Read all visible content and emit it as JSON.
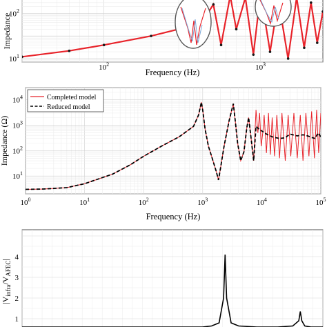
{
  "chart_data": [
    {
      "type": "line",
      "xlabel": "Frequency (Hz)",
      "ylabel": "Impedance",
      "xscale": "log",
      "yscale": "log",
      "xlim": [
        30,
        2500
      ],
      "ylim": [
        0.7,
        450
      ],
      "x_tick_labels": [
        {
          "value": 100,
          "label": "10",
          "exp": "2"
        },
        {
          "value": 1000,
          "label": "10",
          "exp": "3"
        }
      ],
      "y_tick_labels": [
        {
          "value": 1,
          "label": "10",
          "exp": "1"
        },
        {
          "value": 100,
          "label": "10",
          "exp": "2"
        }
      ],
      "grid": true,
      "series": [
        {
          "color": "#e8232a",
          "style": "solid",
          "x": [
            30,
            60,
            100,
            200,
            300,
            400,
            450,
            500,
            560,
            640,
            700,
            800,
            900,
            1000,
            1150,
            1300,
            1500,
            1700,
            1900,
            2100,
            2300,
            2500
          ],
          "y": [
            1.2,
            2.2,
            4.0,
            10.0,
            20.0,
            40.0,
            80.0,
            250.0,
            4.0,
            600.0,
            20.0,
            500.0,
            1.5,
            800.0,
            2.0,
            400.0,
            1.0,
            500.0,
            3.0,
            300.0,
            5.0,
            120.0
          ]
        },
        {
          "color": "#1a1a1a",
          "style": "marker",
          "x": [
            30,
            60,
            100,
            200,
            300,
            400,
            450,
            500,
            560,
            640,
            700,
            800,
            900,
            1000,
            1150,
            1300,
            1500,
            1700,
            1900,
            2100,
            2300,
            2500
          ],
          "y": [
            1.2,
            2.2,
            4.0,
            10.0,
            20.0,
            40.0,
            80.0,
            250.0,
            4.0,
            600.0,
            20.0,
            500.0,
            1.5,
            800.0,
            2.0,
            400.0,
            1.0,
            500.0,
            3.0,
            300.0,
            5.0,
            120.0
          ]
        }
      ]
    },
    {
      "type": "line",
      "xlabel": "Frequency (Hz)",
      "ylabel": "Impedance (Ω)",
      "xscale": "log",
      "yscale": "log",
      "xlim": [
        1,
        100000
      ],
      "ylim": [
        2,
        30000
      ],
      "x_tick_labels": [
        {
          "value": 1,
          "label": "10",
          "exp": "0"
        },
        {
          "value": 10,
          "label": "10",
          "exp": "1"
        },
        {
          "value": 100,
          "label": "10",
          "exp": "2"
        },
        {
          "value": 1000,
          "label": "10",
          "exp": "3"
        },
        {
          "value": 10000,
          "label": "10",
          "exp": "4"
        },
        {
          "value": 100000,
          "label": "10",
          "exp": "5"
        }
      ],
      "y_tick_labels": [
        {
          "value": 10,
          "label": "10",
          "exp": "1"
        },
        {
          "value": 100,
          "label": "10",
          "exp": "2"
        },
        {
          "value": 1000,
          "label": "10",
          "exp": "3"
        },
        {
          "value": 10000,
          "label": "10",
          "exp": "4"
        }
      ],
      "grid": true,
      "legend": "top-left",
      "series": [
        {
          "name": "Completed model",
          "color": "#e8232a",
          "style": "solid",
          "x": [
            1,
            2,
            5,
            10,
            30,
            60,
            100,
            200,
            400,
            700,
            850,
            950,
            1000,
            1100,
            1250,
            1450,
            1700,
            1850,
            2000,
            2300,
            2800,
            3300,
            3600,
            3900,
            4400,
            5000,
            5600,
            6000,
            6600,
            7300,
            8000,
            8600,
            9200,
            9800,
            10500,
            11000,
            12000,
            13000,
            14000,
            15000,
            16500,
            18000,
            20000,
            22000,
            25000,
            28000,
            31000,
            35000,
            40000,
            45000,
            50000,
            56000,
            63000,
            70000,
            78000,
            85000,
            92000,
            100000
          ],
          "y": [
            3,
            3.1,
            3.5,
            5,
            12,
            28,
            60,
            150,
            350,
            900,
            2500,
            8000,
            4000,
            700,
            150,
            50,
            15,
            7,
            20,
            150,
            1500,
            7000,
            1200,
            200,
            40,
            90,
            800,
            2000,
            300,
            40,
            4000,
            500,
            3000,
            150,
            600,
            2500,
            80,
            3000,
            70,
            2000,
            60,
            2500,
            50,
            3000,
            40,
            2500,
            60,
            3000,
            50,
            2500,
            40,
            3000,
            60,
            3500,
            50,
            4000,
            80,
            3000
          ]
        },
        {
          "name": "Reduced model",
          "color": "#000000",
          "style": "dashed",
          "x": [
            1,
            2,
            5,
            10,
            30,
            60,
            100,
            200,
            400,
            700,
            850,
            950,
            1000,
            1100,
            1250,
            1450,
            1700,
            1850,
            2000,
            2300,
            2800,
            3300,
            3600,
            3900,
            4400,
            5000,
            5600,
            6000,
            6600,
            7300,
            8000,
            9000,
            10000,
            12000,
            15000,
            20000,
            25000,
            30000,
            40000,
            50000,
            60000,
            70000,
            80000,
            90000,
            100000
          ],
          "y": [
            3,
            3.1,
            3.5,
            5,
            12,
            28,
            60,
            150,
            350,
            900,
            2500,
            8000,
            4000,
            700,
            150,
            50,
            15,
            7,
            20,
            150,
            1500,
            7000,
            1200,
            200,
            40,
            90,
            800,
            2000,
            300,
            40,
            900,
            700,
            600,
            450,
            350,
            300,
            320,
            450,
            380,
            420,
            380,
            330,
            300,
            500,
            350
          ]
        }
      ]
    },
    {
      "type": "line",
      "ylabel": "|V_infra/V_AFEC|",
      "ylim": [
        0.6,
        5.3
      ],
      "y_tick_labels": [
        {
          "value": 1,
          "label": "1"
        },
        {
          "value": 2,
          "label": "2"
        },
        {
          "value": 3,
          "label": "3"
        },
        {
          "value": 4,
          "label": "4"
        }
      ],
      "grid": true,
      "series": [
        {
          "color": "#000000",
          "style": "solid",
          "x": [
            0,
            0.2,
            0.4,
            0.6,
            0.63,
            0.655,
            0.67,
            0.675,
            0.68,
            0.695,
            0.72,
            0.78,
            0.85,
            0.9,
            0.92,
            0.925,
            0.93,
            0.94,
            0.96,
            1
          ],
          "y": [
            0.6,
            0.6,
            0.6,
            0.6,
            0.65,
            0.8,
            2.0,
            4.1,
            2.0,
            0.8,
            0.65,
            0.6,
            0.6,
            0.65,
            0.9,
            1.35,
            0.9,
            0.65,
            0.6,
            0.6
          ]
        }
      ]
    }
  ]
}
